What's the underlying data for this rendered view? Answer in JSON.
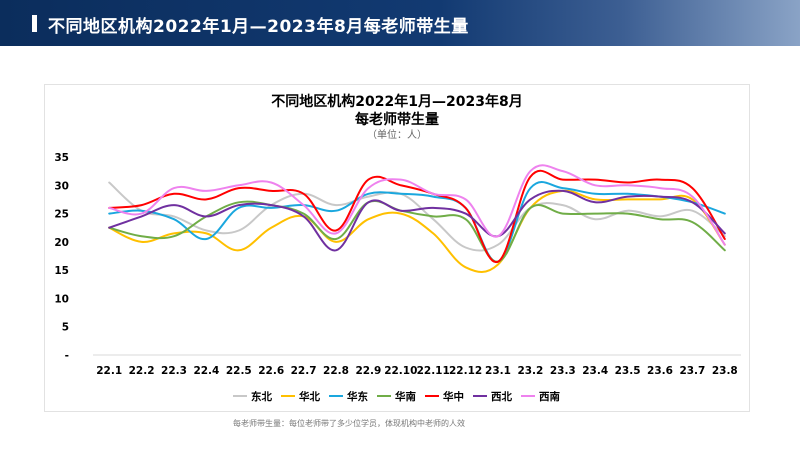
{
  "header": {
    "title": "不同地区机构2022年1月—2023年8月每老师带生量"
  },
  "footnote": "每老师带生量：每位老师带了多少位学员，体现机构中老师的人效",
  "chart_data": {
    "type": "line",
    "title_line1": "不同地区机构2022年1月—2023年8月",
    "title_line2": "每老师带生量",
    "subtitle": "（单位：人）",
    "categories": [
      "22.1",
      "22.2",
      "22.3",
      "22.4",
      "22.5",
      "22.6",
      "22.7",
      "22.8",
      "22.9",
      "22.10",
      "22.11",
      "22.12",
      "23.1",
      "23.2",
      "23.3",
      "23.4",
      "23.5",
      "23.6",
      "23.7",
      "23.8"
    ],
    "yticks": [
      "35",
      "30",
      "25",
      "20",
      "15",
      "10",
      "5",
      "-"
    ],
    "ylim": [
      0,
      35
    ],
    "smooth": true,
    "legend_position": "bottom",
    "series": [
      {
        "name": "东北",
        "color": "#c8c8c8",
        "values": [
          30.5,
          25.5,
          24.5,
          22,
          22,
          26.5,
          28.5,
          26.5,
          28,
          28.5,
          24,
          19,
          19.5,
          26,
          26.5,
          24,
          25.5,
          24.5,
          25.5,
          21
        ]
      },
      {
        "name": "华北",
        "color": "#ffc000",
        "values": [
          22.5,
          20,
          21.5,
          21.5,
          18.5,
          22.5,
          24.5,
          20,
          24,
          25,
          21.5,
          15.5,
          16,
          26,
          29,
          27.5,
          27.5,
          27.5,
          27.5,
          19.5
        ]
      },
      {
        "name": "华东",
        "color": "#1aa7de",
        "values": [
          25,
          25.5,
          24,
          20.5,
          26,
          26,
          26.5,
          25.5,
          28.5,
          28.5,
          28,
          26,
          16.5,
          29.5,
          29.5,
          28.5,
          28.5,
          28,
          27,
          25
        ]
      },
      {
        "name": "华南",
        "color": "#70ad47",
        "values": [
          22.5,
          21,
          21,
          24.5,
          27,
          26.5,
          25,
          20.5,
          27,
          25.5,
          24.5,
          24,
          16.5,
          26,
          25,
          25,
          25,
          24,
          23.5,
          18.5
        ]
      },
      {
        "name": "华中",
        "color": "#ff0000",
        "values": [
          26,
          26.5,
          28.5,
          27.5,
          29.5,
          29,
          28.5,
          22,
          31,
          30,
          28.5,
          26,
          16.5,
          31.5,
          31,
          31,
          30.5,
          31,
          29.5,
          20.5
        ]
      },
      {
        "name": "西北",
        "color": "#7030a0",
        "values": [
          22.5,
          24.5,
          26.5,
          24.5,
          26.5,
          26.5,
          24.5,
          18.5,
          27,
          25.5,
          26,
          25,
          21,
          27.5,
          29,
          27,
          28,
          28,
          27,
          21.5
        ]
      },
      {
        "name": "西南",
        "color": "#ee82ee",
        "values": [
          26,
          25,
          29.5,
          29,
          30,
          30.5,
          26.5,
          21.5,
          29.5,
          31,
          28.5,
          27.5,
          21,
          32.5,
          32.5,
          30,
          30,
          29.5,
          28,
          19.5
        ]
      }
    ]
  }
}
